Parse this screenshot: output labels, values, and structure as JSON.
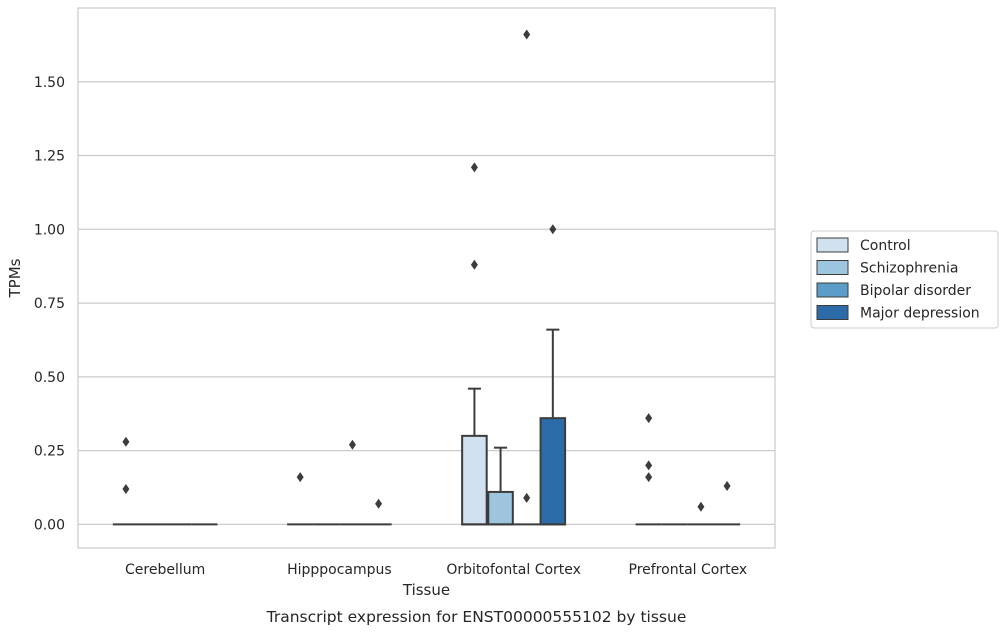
{
  "chart_data": {
    "type": "box",
    "caption": "Transcript expression for ENST00000555102 by tissue",
    "xlabel": "Tissue",
    "ylabel": "TPMs",
    "ylim": [
      -0.08,
      1.75
    ],
    "yticks": [
      0.0,
      0.25,
      0.5,
      0.75,
      1.0,
      1.25,
      1.5
    ],
    "ytick_labels": [
      "0.00",
      "0.25",
      "0.50",
      "0.75",
      "1.00",
      "1.25",
      "1.50"
    ],
    "grid": "horizontal",
    "legend_position": "right",
    "categories": [
      "Cerebellum",
      "Hipppocampus",
      "Orbitofontal Cortex",
      "Prefrontal Cortex"
    ],
    "series": [
      {
        "name": "Control",
        "color": "#d1e1ef",
        "boxes": [
          {
            "q1": 0,
            "median": 0,
            "q3": 0,
            "whisker_low": 0,
            "whisker_high": 0,
            "outliers": [
              0.12,
              0.28
            ]
          },
          {
            "q1": 0,
            "median": 0,
            "q3": 0,
            "whisker_low": 0,
            "whisker_high": 0,
            "outliers": [
              0.16
            ]
          },
          {
            "q1": 0,
            "median": 0,
            "q3": 0.3,
            "whisker_low": 0,
            "whisker_high": 0.46,
            "outliers": [
              0.88,
              1.21
            ]
          },
          {
            "q1": 0,
            "median": 0,
            "q3": 0,
            "whisker_low": 0,
            "whisker_high": 0,
            "outliers": [
              0.16,
              0.2,
              0.36
            ]
          }
        ]
      },
      {
        "name": "Schizophrenia",
        "color": "#9ec5de",
        "boxes": [
          {
            "q1": 0,
            "median": 0,
            "q3": 0,
            "whisker_low": 0,
            "whisker_high": 0,
            "outliers": []
          },
          {
            "q1": 0,
            "median": 0,
            "q3": 0,
            "whisker_low": 0,
            "whisker_high": 0,
            "outliers": []
          },
          {
            "q1": 0,
            "median": 0,
            "q3": 0.11,
            "whisker_low": 0,
            "whisker_high": 0.26,
            "outliers": []
          },
          {
            "q1": 0,
            "median": 0,
            "q3": 0,
            "whisker_low": 0,
            "whisker_high": 0,
            "outliers": []
          }
        ]
      },
      {
        "name": "Bipolar disorder",
        "color": "#5b9cc9",
        "boxes": [
          {
            "q1": 0,
            "median": 0,
            "q3": 0,
            "whisker_low": 0,
            "whisker_high": 0,
            "outliers": []
          },
          {
            "q1": 0,
            "median": 0,
            "q3": 0,
            "whisker_low": 0,
            "whisker_high": 0,
            "outliers": [
              0.27
            ]
          },
          {
            "q1": 0,
            "median": 0,
            "q3": 0,
            "whisker_low": 0,
            "whisker_high": 0,
            "outliers": [
              0.09,
              1.66
            ]
          },
          {
            "q1": 0,
            "median": 0,
            "q3": 0,
            "whisker_low": 0,
            "whisker_high": 0,
            "outliers": [
              0.06
            ]
          }
        ]
      },
      {
        "name": "Major depression",
        "color": "#2b6ba8",
        "boxes": [
          {
            "q1": 0,
            "median": 0,
            "q3": 0,
            "whisker_low": 0,
            "whisker_high": 0,
            "outliers": []
          },
          {
            "q1": 0,
            "median": 0,
            "q3": 0,
            "whisker_low": 0,
            "whisker_high": 0,
            "outliers": [
              0.07
            ]
          },
          {
            "q1": 0,
            "median": 0,
            "q3": 0.36,
            "whisker_low": 0,
            "whisker_high": 0.66,
            "outliers": [
              1.0
            ]
          },
          {
            "q1": 0,
            "median": 0,
            "q3": 0,
            "whisker_low": 0,
            "whisker_high": 0,
            "outliers": [
              0.13
            ]
          }
        ]
      }
    ]
  }
}
